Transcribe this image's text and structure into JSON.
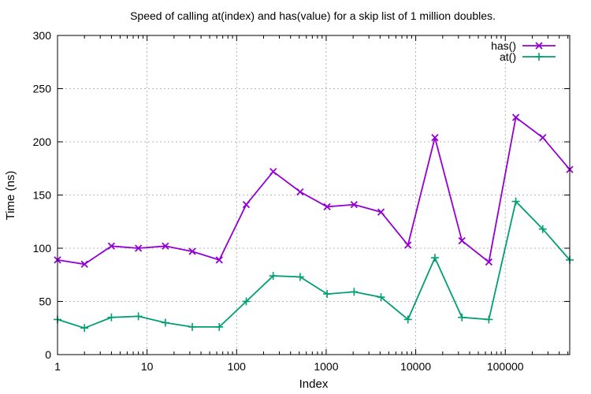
{
  "chart_data": {
    "type": "line",
    "title": "Speed of calling at(index) and has(value) for a skip list of 1 million doubles.",
    "xlabel": "Index",
    "ylabel": "Time (ns)",
    "x_scale": "log",
    "xlim": [
      1,
      524288
    ],
    "ylim": [
      0,
      300
    ],
    "grid": true,
    "legend_position": "top-right",
    "x_ticks": [
      {
        "value": 1,
        "label": "1"
      },
      {
        "value": 10,
        "label": "10"
      },
      {
        "value": 100,
        "label": "100"
      },
      {
        "value": 1000,
        "label": "1000"
      },
      {
        "value": 10000,
        "label": "10000"
      },
      {
        "value": 100000,
        "label": "100000"
      }
    ],
    "y_ticks": [
      {
        "value": 0,
        "label": "0"
      },
      {
        "value": 50,
        "label": "50"
      },
      {
        "value": 100,
        "label": "100"
      },
      {
        "value": 150,
        "label": "150"
      },
      {
        "value": 200,
        "label": "200"
      },
      {
        "value": 250,
        "label": "250"
      },
      {
        "value": 300,
        "label": "300"
      }
    ],
    "x": [
      1,
      2,
      4,
      8,
      16,
      32,
      64,
      128,
      256,
      512,
      1024,
      2048,
      4096,
      8192,
      16384,
      32768,
      65536,
      131072,
      262144,
      524288
    ],
    "series": [
      {
        "name": "has()",
        "color": "#9400d3",
        "marker": "x",
        "values": [
          89,
          85,
          102,
          100,
          102,
          97,
          89,
          141,
          172,
          153,
          139,
          141,
          134,
          103,
          204,
          107,
          87,
          223,
          204,
          174
        ]
      },
      {
        "name": "at()",
        "color": "#009e73",
        "marker": "plus",
        "values": [
          33,
          25,
          35,
          36,
          30,
          26,
          26,
          50,
          74,
          73,
          57,
          59,
          54,
          33,
          91,
          35,
          33,
          144,
          118,
          89
        ]
      }
    ]
  }
}
